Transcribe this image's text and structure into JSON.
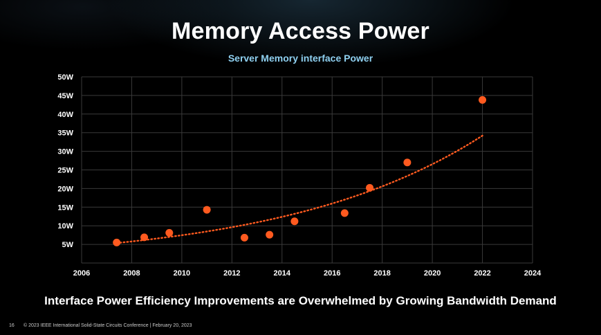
{
  "slide": {
    "title": "Memory Access Power",
    "message": "Interface Power Efficiency Improvements are Overwhelmed by Growing Bandwidth Demand",
    "page_number": "16",
    "copyright": "© 2023 IEEE International Solid-State Circuits Conference  |  February 20, 2023"
  },
  "colors": {
    "background": "#000000",
    "marker": "#ff5a1f",
    "trendline": "#ff5a1f",
    "grid": "#3a3a3a",
    "chart_title": "#8fd0f0"
  },
  "chart_data": {
    "type": "scatter",
    "title": "Server Memory interface Power",
    "xlabel": "",
    "ylabel": "",
    "xlim": [
      2006,
      2024
    ],
    "ylim": [
      0,
      50
    ],
    "x_ticks": [
      "2006",
      "2008",
      "2010",
      "2012",
      "2014",
      "2016",
      "2018",
      "2020",
      "2022",
      "2024"
    ],
    "y_ticks": [
      "5W",
      "10W",
      "15W",
      "20W",
      "25W",
      "30W",
      "35W",
      "40W",
      "45W",
      "50W"
    ],
    "grid": true,
    "trendline": "exponential, dotted",
    "series": [
      {
        "points": [
          {
            "x": 2007.4,
            "y": 5.5
          },
          {
            "x": 2008.5,
            "y": 6.9
          },
          {
            "x": 2009.5,
            "y": 8.1
          },
          {
            "x": 2011.0,
            "y": 14.3
          },
          {
            "x": 2012.5,
            "y": 6.8
          },
          {
            "x": 2013.5,
            "y": 7.6
          },
          {
            "x": 2014.5,
            "y": 11.2
          },
          {
            "x": 2016.5,
            "y": 13.4
          },
          {
            "x": 2017.5,
            "y": 20.2
          },
          {
            "x": 2019.0,
            "y": 27.0
          },
          {
            "x": 2022.0,
            "y": 43.8
          }
        ]
      }
    ]
  }
}
